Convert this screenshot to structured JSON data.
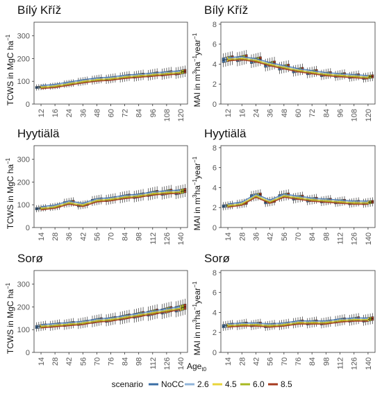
{
  "xlabel_main": "Age",
  "xlabel_sub": "t0",
  "legend": {
    "title": "scenario",
    "items": [
      {
        "label": "NoCC",
        "color": "#3a6ea5"
      },
      {
        "label": "2.6",
        "color": "#8fb3d9"
      },
      {
        "label": "4.5",
        "color": "#e8d43a"
      },
      {
        "label": "6.0",
        "color": "#a8b820"
      },
      {
        "label": "8.5",
        "color": "#a63a1e"
      }
    ]
  },
  "panels": [
    {
      "site": "Bílý Kříž",
      "metric": "TCWS",
      "ylabel": "TCWS in MgC ha",
      "yticks": [
        0,
        100,
        200,
        300
      ],
      "ylim": [
        0,
        360
      ],
      "ages": [
        12,
        16,
        24,
        36,
        48,
        60,
        72,
        84,
        96,
        108,
        120
      ],
      "values": [
        75,
        80,
        90,
        100,
        108,
        112,
        120,
        125,
        130,
        135,
        140
      ]
    },
    {
      "site": "Bílý Kříž",
      "metric": "MAI",
      "ylabel": "MAI in m",
      "yticks": [
        0,
        2,
        4,
        6,
        8
      ],
      "ylim": [
        0,
        8.2
      ],
      "ages": [
        12,
        16,
        24,
        36,
        48,
        60,
        72,
        84,
        96,
        108,
        120
      ],
      "values": [
        4.5,
        4.6,
        4.4,
        4.0,
        3.7,
        3.4,
        3.2,
        3.0,
        2.9,
        2.8,
        2.7
      ]
    },
    {
      "site": "Hyytiälä",
      "metric": "TCWS",
      "ylabel": "TCWS in MgC ha",
      "yticks": [
        0,
        100,
        200,
        300
      ],
      "ylim": [
        0,
        360
      ],
      "ages": [
        14,
        28,
        36,
        42,
        56,
        70,
        84,
        98,
        112,
        126,
        140
      ],
      "values": [
        85,
        92,
        110,
        100,
        120,
        125,
        135,
        140,
        150,
        155,
        158
      ]
    },
    {
      "site": "Hyytiälä",
      "metric": "MAI",
      "ylabel": "MAI in m",
      "yticks": [
        0,
        2,
        4,
        6,
        8
      ],
      "ylim": [
        0,
        8.2
      ],
      "ages": [
        14,
        28,
        36,
        42,
        56,
        70,
        84,
        98,
        112,
        126,
        140
      ],
      "values": [
        2.2,
        2.4,
        3.2,
        2.6,
        3.2,
        3.0,
        2.8,
        2.7,
        2.6,
        2.5,
        2.5
      ]
    },
    {
      "site": "Sorø",
      "metric": "TCWS",
      "ylabel": "TCWS in MgC ha",
      "yticks": [
        0,
        100,
        200,
        300
      ],
      "ylim": [
        0,
        360
      ],
      "ages": [
        14,
        28,
        42,
        56,
        70,
        76,
        84,
        98,
        112,
        126,
        140
      ],
      "values": [
        115,
        120,
        125,
        130,
        140,
        145,
        155,
        165,
        175,
        185,
        195
      ]
    },
    {
      "site": "Sorø",
      "metric": "MAI",
      "ylabel": "MAI in m",
      "yticks": [
        0,
        2,
        4,
        6,
        8
      ],
      "ylim": [
        0,
        8.2
      ],
      "ages": [
        14,
        28,
        42,
        56,
        70,
        76,
        84,
        98,
        112,
        126,
        140
      ],
      "values": [
        2.7,
        2.8,
        2.8,
        2.7,
        2.8,
        3.0,
        3.0,
        3.0,
        3.2,
        3.3,
        3.3
      ]
    }
  ],
  "chart_data": {
    "type": "box",
    "facets": [
      "Bílý Kříž TCWS",
      "Bílý Kříž MAI",
      "Hyytiälä TCWS",
      "Hyytiälä MAI",
      "Sorø TCWS",
      "Sorø MAI"
    ],
    "series_names": [
      "NoCC",
      "2.6",
      "4.5",
      "6.0",
      "8.5"
    ],
    "note_values": "approximate median values per age class, per facet as listed in panels"
  }
}
